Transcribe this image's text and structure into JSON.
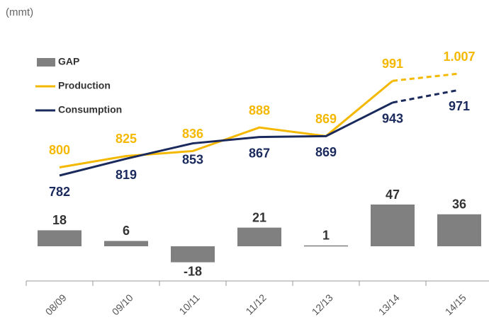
{
  "chart_data": {
    "type": "bar_line",
    "subtitle": "(mmt)",
    "categories": [
      "08/09",
      "09/10",
      "10/11",
      "11/12",
      "12/13",
      "13/14",
      "14/15"
    ],
    "dashed_last_segment": true,
    "series": [
      {
        "name": "GAP",
        "type": "bar",
        "color": "#808080",
        "values": [
          18,
          6,
          -18,
          21,
          1,
          47,
          36
        ]
      },
      {
        "name": "Production",
        "type": "line",
        "color": "#f5b800",
        "values": [
          800,
          825,
          836,
          888,
          869,
          991,
          1007
        ],
        "value_labels": [
          "800",
          "825",
          "836",
          "888",
          "869",
          "991",
          "1.007"
        ]
      },
      {
        "name": "Consumption",
        "type": "line",
        "color": "#1b2a5c",
        "values": [
          782,
          819,
          853,
          867,
          869,
          943,
          971
        ]
      }
    ]
  }
}
